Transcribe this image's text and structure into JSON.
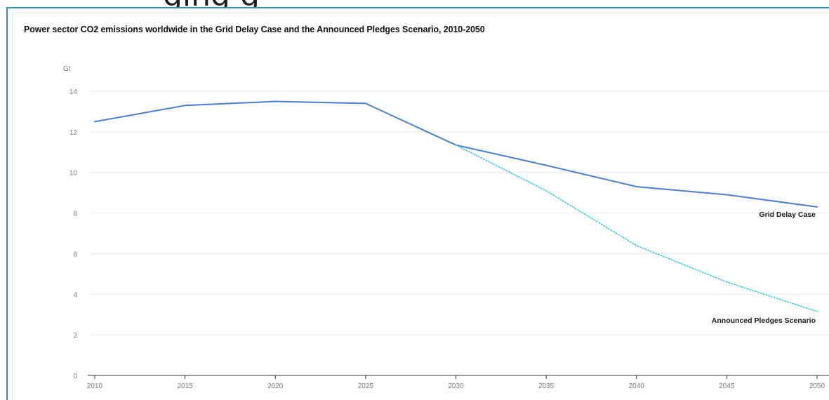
{
  "page": {
    "top_snippet": "ging g"
  },
  "chart_data": {
    "type": "line",
    "title": "Power sector CO2 emissions worldwide in the Grid Delay Case and the Announced Pledges Scenario, 2010-2050",
    "ylabel": "Gt",
    "xlabel": "",
    "ylim": [
      0,
      14
    ],
    "yticks": [
      0,
      2,
      4,
      6,
      8,
      10,
      12,
      14
    ],
    "xlim": [
      2010,
      2050
    ],
    "xticks": [
      2010,
      2015,
      2020,
      2025,
      2030,
      2035,
      2040,
      2045,
      2050
    ],
    "grid": true,
    "series": [
      {
        "name": "Grid Delay Case",
        "color": "#4a7fd1",
        "style": "solid",
        "x": [
          2010,
          2015,
          2020,
          2025,
          2030,
          2035,
          2040,
          2045,
          2050
        ],
        "values": [
          12.5,
          13.3,
          13.5,
          13.4,
          11.35,
          10.35,
          9.3,
          8.9,
          8.3
        ]
      },
      {
        "name": "Announced Pledges Scenario",
        "color": "#3cc4e6",
        "style": "dotted",
        "x": [
          2030,
          2035,
          2040,
          2045,
          2050
        ],
        "values": [
          11.35,
          9.1,
          6.4,
          4.6,
          3.15
        ]
      }
    ]
  }
}
